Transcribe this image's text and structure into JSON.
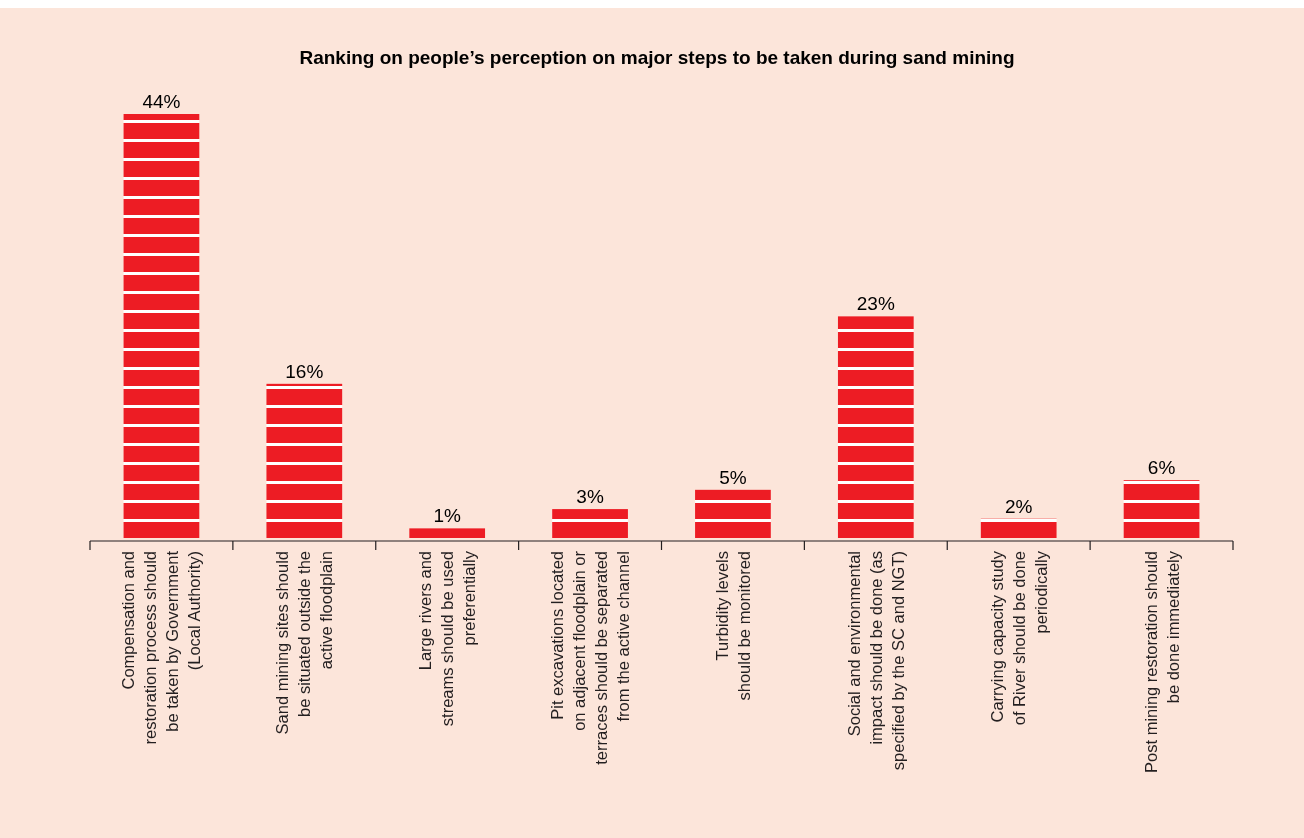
{
  "chart_data": {
    "type": "bar",
    "title": "Ranking on people’s perception on major steps to be taken during sand mining",
    "categories": [
      "Compensation and\nrestoration process should\nbe taken by Government\n(Local Authority)",
      "Sand mining sites should\nbe situated outside the\nactive floodplain",
      "Large rivers and\nstreams  should be used\npreferentially",
      "Pit excavations located\non adjacent floodplain or\nterraces should be separated\nfrom the active channel",
      "Turbidity levels\nshould be monitored",
      "Social and environmental\nimpact should be done (as\nspecified by the SC and NGT)",
      "Carrying capacity study\nof River should be done\nperiodically",
      "Post mining restoration should\nbe done immediately"
    ],
    "values": [
      44,
      16,
      1,
      3,
      5,
      23,
      2,
      6
    ],
    "value_labels": [
      "44%",
      "16%",
      "1%",
      "3%",
      "5%",
      "23%",
      "2%",
      "6%"
    ],
    "color": "#ed1c24"
  }
}
